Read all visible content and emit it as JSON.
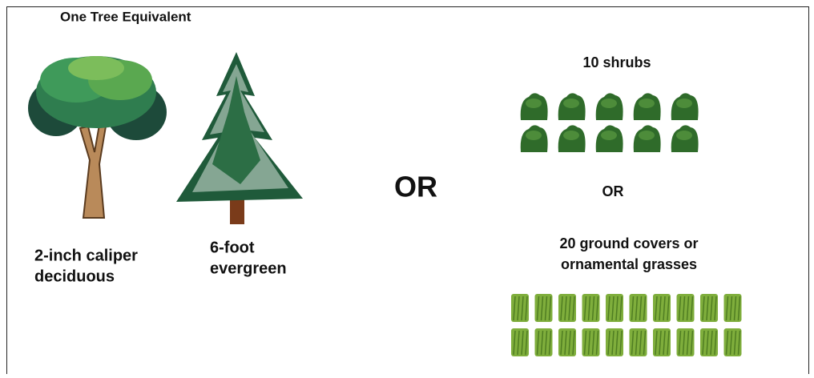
{
  "title": "One Tree Equivalent",
  "trees": [
    {
      "label_lines": [
        "2-inch caliper",
        "deciduous"
      ]
    },
    {
      "label_lines": [
        "6-foot",
        "evergreen"
      ]
    }
  ],
  "main_separator": "OR",
  "shrubs": {
    "label": "10 shrubs"
  },
  "inner_separator": "OR",
  "ground_covers": {
    "label_lines": [
      "20 ground covers or",
      "ornamental grasses"
    ]
  }
}
